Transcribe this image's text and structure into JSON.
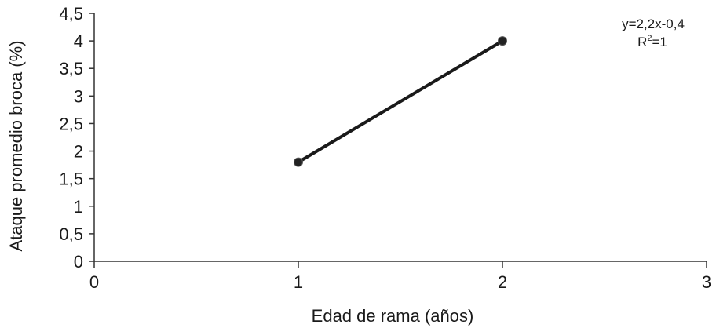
{
  "chart_data": {
    "type": "line",
    "title": "",
    "xlabel": "Edad de rama (años)",
    "ylabel": "Ataque promedio broca (%)",
    "xlim": [
      0,
      3
    ],
    "ylim": [
      0,
      4.5
    ],
    "x_ticks": [
      0,
      1,
      2,
      3
    ],
    "x_tick_labels": [
      "0",
      "1",
      "2",
      "3"
    ],
    "y_ticks": [
      0,
      0.5,
      1,
      1.5,
      2,
      2.5,
      3,
      3.5,
      4,
      4.5
    ],
    "y_tick_labels": [
      "0",
      "0,5",
      "1",
      "1,5",
      "2",
      "2,5",
      "3",
      "3,5",
      "4",
      "4,5"
    ],
    "grid": false,
    "series": [
      {
        "x": [
          1,
          2
        ],
        "y": [
          1.8,
          4.0
        ]
      }
    ],
    "annotation": {
      "equation": "y=2,2x-0,4",
      "r_prefix": "R",
      "r_superscript": "2",
      "r_suffix": "=1"
    },
    "colors": {
      "line": "#1a1a1a",
      "marker": "#222222",
      "axis": "#333333"
    }
  }
}
